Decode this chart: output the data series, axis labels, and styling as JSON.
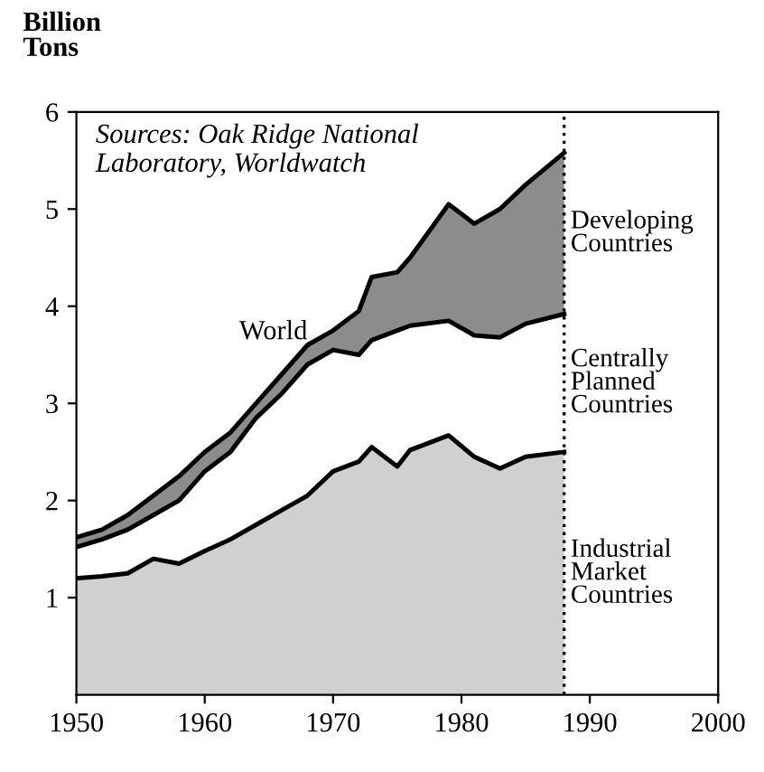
{
  "chart_data": {
    "type": "area",
    "stacked": true,
    "ylabel": "Billion Tons",
    "x": [
      1950,
      1952,
      1954,
      1956,
      1958,
      1960,
      1962,
      1964,
      1966,
      1968,
      1970,
      1972,
      1973,
      1975,
      1976,
      1979,
      1981,
      1983,
      1985,
      1988
    ],
    "series": [
      {
        "name": "Industrial Market Countries",
        "color": "#d0d0d0",
        "values": [
          1.2,
          1.22,
          1.25,
          1.4,
          1.35,
          1.48,
          1.6,
          1.75,
          1.9,
          2.05,
          2.3,
          2.4,
          2.55,
          2.35,
          2.52,
          2.67,
          2.45,
          2.33,
          2.45,
          2.5
        ]
      },
      {
        "name": "Centrally Planned Countries",
        "color": "#ffffff",
        "values": [
          0.32,
          0.38,
          0.45,
          0.45,
          0.65,
          0.82,
          0.9,
          1.1,
          1.2,
          1.35,
          1.25,
          1.1,
          1.1,
          1.4,
          1.28,
          1.18,
          1.25,
          1.35,
          1.37,
          1.42
        ]
      },
      {
        "name": "Developing Countries",
        "color": "#8c8c8c",
        "values": [
          0.1,
          0.1,
          0.15,
          0.2,
          0.25,
          0.2,
          0.2,
          0.15,
          0.2,
          0.2,
          0.2,
          0.45,
          0.65,
          0.6,
          0.7,
          1.2,
          1.15,
          1.32,
          1.43,
          1.66
        ]
      }
    ],
    "xlim": [
      1950,
      2000
    ],
    "xticks": [
      1950,
      1960,
      1970,
      1980,
      1990,
      2000
    ],
    "ylim": [
      0,
      6
    ],
    "yticks": [
      1,
      2,
      3,
      4,
      5,
      6
    ],
    "annotations": [
      "Sources: Oak Ridge National Laboratory, Worldwatch",
      {
        "text": "World",
        "x": 1968,
        "y": 3.6
      }
    ],
    "ref_lines": [
      {
        "axis": "x",
        "value": 1988,
        "line_style": "dotted",
        "color": "#000000"
      }
    ],
    "legend": false,
    "grid": false
  }
}
